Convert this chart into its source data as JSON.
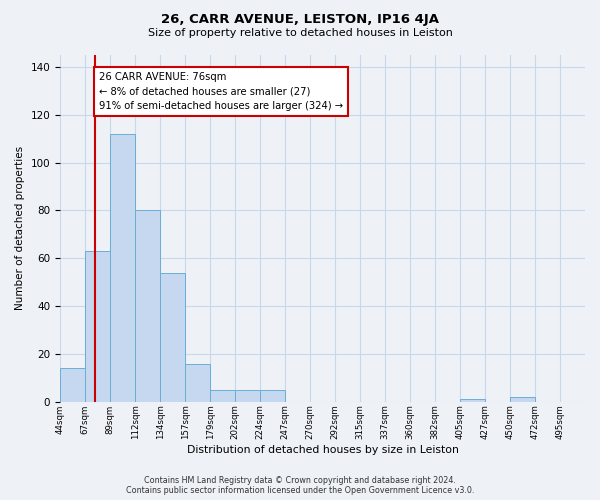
{
  "title": "26, CARR AVENUE, LEISTON, IP16 4JA",
  "subtitle": "Size of property relative to detached houses in Leiston",
  "xlabel": "Distribution of detached houses by size in Leiston",
  "ylabel": "Number of detached properties",
  "bin_labels": [
    "44sqm",
    "67sqm",
    "89sqm",
    "112sqm",
    "134sqm",
    "157sqm",
    "179sqm",
    "202sqm",
    "224sqm",
    "247sqm",
    "270sqm",
    "292sqm",
    "315sqm",
    "337sqm",
    "360sqm",
    "382sqm",
    "405sqm",
    "427sqm",
    "450sqm",
    "472sqm",
    "495sqm"
  ],
  "bar_heights": [
    14,
    63,
    112,
    80,
    54,
    16,
    5,
    5,
    5,
    0,
    0,
    0,
    0,
    0,
    0,
    0,
    1,
    0,
    2,
    0,
    0
  ],
  "bar_color": "#c5d8f0",
  "bar_edge_color": "#6aaed6",
  "ylim": [
    0,
    145
  ],
  "yticks": [
    0,
    20,
    40,
    60,
    80,
    100,
    120,
    140
  ],
  "property_line_x": 76,
  "bin_edges_sqm": [
    44,
    67,
    89,
    112,
    134,
    157,
    179,
    202,
    224,
    247,
    270,
    292,
    315,
    337,
    360,
    382,
    405,
    427,
    450,
    472,
    495
  ],
  "annotation_text": "26 CARR AVENUE: 76sqm\n← 8% of detached houses are smaller (27)\n91% of semi-detached houses are larger (324) →",
  "annotation_box_color": "#ffffff",
  "annotation_box_edge_color": "#cc0000",
  "red_line_color": "#cc0000",
  "grid_color": "#c8d8ea",
  "background_color": "#eef2f7",
  "footer_line1": "Contains HM Land Registry data © Crown copyright and database right 2024.",
  "footer_line2": "Contains public sector information licensed under the Open Government Licence v3.0."
}
